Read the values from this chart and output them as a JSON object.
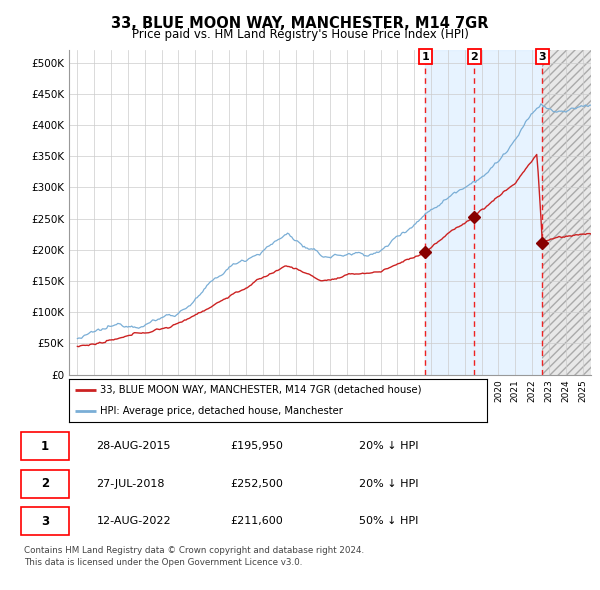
{
  "title": "33, BLUE MOON WAY, MANCHESTER, M14 7GR",
  "subtitle": "Price paid vs. HM Land Registry's House Price Index (HPI)",
  "xlim": [
    1994.5,
    2025.5
  ],
  "ylim": [
    0,
    520000
  ],
  "ytick_vals": [
    0,
    50000,
    100000,
    150000,
    200000,
    250000,
    300000,
    350000,
    400000,
    450000,
    500000
  ],
  "ytick_labels": [
    "£0",
    "£50K",
    "£100K",
    "£150K",
    "£200K",
    "£250K",
    "£300K",
    "£350K",
    "£400K",
    "£450K",
    "£500K"
  ],
  "sale_dates": [
    2015.658,
    2018.572,
    2022.617
  ],
  "sale_prices": [
    195950,
    252500,
    211600
  ],
  "sale_labels": [
    "1",
    "2",
    "3"
  ],
  "hpi_color": "#7aaed6",
  "price_color": "#cc2222",
  "sale_marker_color": "#880000",
  "dashed_line_color": "#ee2222",
  "shaded_color": "#ddeeff",
  "legend_entries": [
    "33, BLUE MOON WAY, MANCHESTER, M14 7GR (detached house)",
    "HPI: Average price, detached house, Manchester"
  ],
  "table_rows": [
    [
      "1",
      "28-AUG-2015",
      "£195,950",
      "20% ↓ HPI"
    ],
    [
      "2",
      "27-JUL-2018",
      "£252,500",
      "20% ↓ HPI"
    ],
    [
      "3",
      "12-AUG-2022",
      "£211,600",
      "50% ↓ HPI"
    ]
  ],
  "footer": "Contains HM Land Registry data © Crown copyright and database right 2024.\nThis data is licensed under the Open Government Licence v3.0."
}
